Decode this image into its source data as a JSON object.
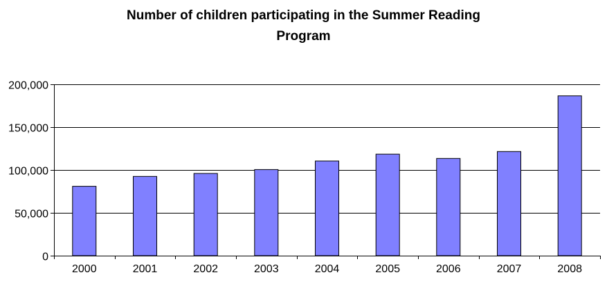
{
  "chart_data": {
    "type": "bar",
    "title": "Number of children participating in the Summer Reading Program",
    "title_lines": [
      "Number of children participating in the Summer Reading",
      "Program"
    ],
    "categories": [
      "2000",
      "2001",
      "2002",
      "2003",
      "2004",
      "2005",
      "2006",
      "2007",
      "2008"
    ],
    "values": [
      81000,
      92500,
      96000,
      100500,
      110500,
      118500,
      113500,
      121500,
      186500
    ],
    "ylim": [
      0,
      200000
    ],
    "yticks": [
      0,
      50000,
      100000,
      150000,
      200000
    ],
    "ytick_labels": [
      "0",
      "50,000",
      "100,000",
      "150,000",
      "200,000"
    ],
    "xlabel": "",
    "ylabel": "",
    "grid": true,
    "legend": "none",
    "colors": {
      "bar_fill": "#8080ff",
      "bar_stroke": "#000000",
      "grid": "#000000"
    }
  }
}
